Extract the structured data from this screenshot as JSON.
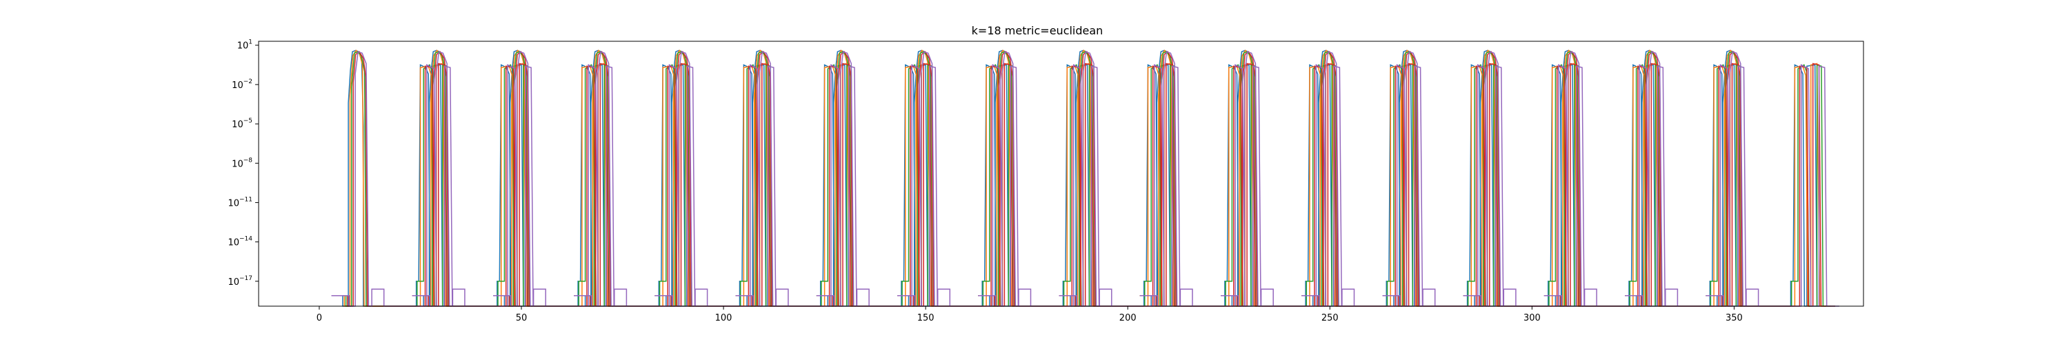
{
  "chart_data": {
    "type": "line",
    "title": "k=18 metric=euclidean",
    "xlabel": "",
    "ylabel": "",
    "yscale": "log",
    "xlim": [
      -15,
      382
    ],
    "ylim_exponent": [
      -18.9,
      1.3
    ],
    "grid": false,
    "x_ticks": [
      {
        "value": 0,
        "label": "0"
      },
      {
        "value": 50,
        "label": "50"
      },
      {
        "value": 100,
        "label": "100"
      },
      {
        "value": 150,
        "label": "150"
      },
      {
        "value": 200,
        "label": "200"
      },
      {
        "value": 250,
        "label": "250"
      },
      {
        "value": 300,
        "label": "300"
      },
      {
        "value": 350,
        "label": "350"
      }
    ],
    "y_ticks": [
      {
        "exponent": 1,
        "base": "10",
        "sup": "1"
      },
      {
        "exponent": -2,
        "base": "10",
        "sup": "−2"
      },
      {
        "exponent": -5,
        "base": "10",
        "sup": "−5"
      },
      {
        "exponent": -8,
        "base": "10",
        "sup": "−8"
      },
      {
        "exponent": -11,
        "base": "10",
        "sup": "−11"
      },
      {
        "exponent": -14,
        "base": "10",
        "sup": "−14"
      },
      {
        "exponent": -17,
        "base": "10",
        "sup": "−17"
      }
    ],
    "series_colors": [
      "#1f77b4",
      "#ff7f0e",
      "#2ca02c",
      "#d62728",
      "#9467bd",
      "#8c564b",
      "#e377c2",
      "#7f7f7f",
      "#bcbd22",
      "#17becf"
    ],
    "series": [
      {
        "points": [
          [
            3,
            -18.1
          ],
          [
            5.8,
            -18.1
          ],
          [
            5.8,
            -18.9
          ],
          [
            7.2,
            -18.9
          ],
          [
            7.2,
            -3.4
          ],
          [
            7.7,
            -0.9
          ],
          [
            8.2,
            0.5
          ],
          [
            9,
            0.6
          ],
          [
            9.8,
            0.5
          ],
          [
            10.5,
            -0.2
          ],
          [
            10.9,
            -5.2
          ],
          [
            10.9,
            -18.9
          ],
          [
            24,
            -18.9
          ],
          [
            24,
            -17
          ],
          [
            24.6,
            -17
          ],
          [
            25,
            -0.5
          ],
          [
            26.3,
            -0.7
          ],
          [
            27,
            -1.2
          ],
          [
            27.4,
            -18.9
          ],
          [
            28,
            -18.9
          ],
          [
            28,
            -0.6
          ],
          [
            30,
            -0.5
          ],
          [
            30.5,
            -18.9
          ],
          [
            33,
            -18.9
          ]
        ]
      },
      {
        "points": [
          [
            3,
            -18.1
          ],
          [
            6.2,
            -18.1
          ],
          [
            6.2,
            -18.9
          ],
          [
            7.6,
            -18.9
          ],
          [
            7.6,
            -2.8
          ],
          [
            8.3,
            0.2
          ],
          [
            9.1,
            0.6
          ],
          [
            9.9,
            0.4
          ],
          [
            10.7,
            -0.5
          ],
          [
            11.1,
            -18.9
          ],
          [
            25,
            -18.9
          ],
          [
            25,
            -0.7
          ],
          [
            27,
            -0.6
          ],
          [
            27.7,
            -1.3
          ],
          [
            28.2,
            -18.9
          ],
          [
            29,
            -18.9
          ],
          [
            29,
            -0.5
          ],
          [
            30.5,
            -0.4
          ],
          [
            31.2,
            -18.9
          ],
          [
            34,
            -18.9
          ]
        ]
      },
      {
        "points": [
          [
            3,
            -18.1
          ],
          [
            6.6,
            -18.1
          ],
          [
            6.6,
            -18.9
          ],
          [
            8,
            -18.9
          ],
          [
            8,
            -2.2
          ],
          [
            8.7,
            0.4
          ],
          [
            9.5,
            0.5
          ],
          [
            10.4,
            0.2
          ],
          [
            11.2,
            -1
          ],
          [
            11.6,
            -18.9
          ],
          [
            24.2,
            -18.9
          ],
          [
            24.2,
            -17
          ],
          [
            25.8,
            -17
          ],
          [
            25.8,
            -0.8
          ],
          [
            27.3,
            -0.5
          ],
          [
            27.9,
            -1
          ],
          [
            28.5,
            -18.9
          ],
          [
            30.5,
            -18.9
          ],
          [
            30.5,
            -0.5
          ],
          [
            31.6,
            -0.6
          ],
          [
            32,
            -18.9
          ],
          [
            35,
            -18.9
          ]
        ]
      },
      {
        "points": [
          [
            3,
            -18.1
          ],
          [
            7,
            -18.1
          ],
          [
            7,
            -18.9
          ],
          [
            8.4,
            -18.9
          ],
          [
            8.4,
            -1.8
          ],
          [
            9,
            0.3
          ],
          [
            9.9,
            0.5
          ],
          [
            10.9,
            0
          ],
          [
            11.5,
            -1.4
          ],
          [
            11.9,
            -18.9
          ],
          [
            26.2,
            -18.9
          ],
          [
            26.2,
            -0.6
          ],
          [
            28,
            -0.7
          ],
          [
            28.4,
            -18.9
          ],
          [
            29.5,
            -18.9
          ],
          [
            29.5,
            -0.4
          ],
          [
            31,
            -0.5
          ],
          [
            31.5,
            -18.9
          ],
          [
            35,
            -18.9
          ]
        ]
      },
      {
        "points": [
          [
            3,
            -18.1
          ],
          [
            7.4,
            -18.1
          ],
          [
            7.4,
            -18.9
          ],
          [
            8.9,
            -18.9
          ],
          [
            8.9,
            -1.2
          ],
          [
            9.6,
            0.5
          ],
          [
            10.6,
            0.4
          ],
          [
            11.6,
            -0.4
          ],
          [
            12.2,
            -18.9
          ],
          [
            13,
            -18.9
          ],
          [
            13,
            -17.6
          ],
          [
            16,
            -17.6
          ],
          [
            16,
            -18.9
          ],
          [
            26.6,
            -18.9
          ],
          [
            26.6,
            -0.5
          ],
          [
            28.4,
            -0.8
          ],
          [
            29,
            -18.9
          ],
          [
            31,
            -18.9
          ],
          [
            31,
            -0.6
          ],
          [
            32.4,
            -0.7
          ],
          [
            32.9,
            -18.9
          ],
          [
            36,
            -18.9
          ]
        ]
      }
    ]
  }
}
